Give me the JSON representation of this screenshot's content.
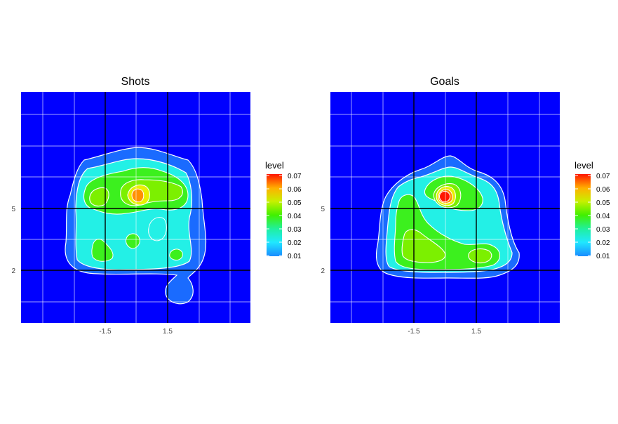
{
  "chart_data": [
    {
      "type": "contour-density",
      "title": "Shots",
      "x_ticks": [
        "-1.5",
        "1.5"
      ],
      "y_ticks": [
        "5",
        "2"
      ],
      "legend": {
        "title": "level",
        "values": [
          "0.07",
          "0.06",
          "0.05",
          "0.04",
          "0.03",
          "0.02",
          "0.01"
        ]
      },
      "peak_level": 0.06
    },
    {
      "type": "contour-density",
      "title": "Goals",
      "x_ticks": [
        "-1.5",
        "1.5"
      ],
      "y_ticks": [
        "5",
        "2"
      ],
      "legend": {
        "title": "level",
        "values": [
          "0.07",
          "0.06",
          "0.05",
          "0.04",
          "0.03",
          "0.02",
          "0.01"
        ]
      },
      "peak_level": 0.07
    }
  ],
  "colors": {
    "background": "#0000ff",
    "level_01": "#1a6bff",
    "level_02": "#23f0e6",
    "level_03": "#3cf01e",
    "level_04": "#7cf000",
    "level_05": "#e8f000",
    "level_06": "#ff9000",
    "level_07": "#ff1500"
  }
}
